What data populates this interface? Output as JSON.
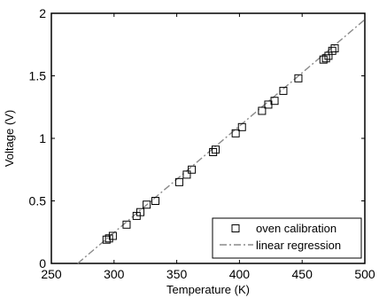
{
  "chart_data": {
    "type": "scatter",
    "xlabel": "Temperature (K)",
    "ylabel": "Voltage (V)",
    "xlim": [
      250,
      500
    ],
    "ylim": [
      0,
      2
    ],
    "xticks": [
      250,
      300,
      350,
      400,
      450,
      500
    ],
    "yticks": [
      0,
      0.5,
      1,
      1.5,
      2
    ],
    "xtick_labels": [
      "250",
      "300",
      "350",
      "400",
      "450",
      "500"
    ],
    "ytick_labels": [
      "0",
      "0.5",
      "1",
      "1.5",
      "2"
    ],
    "grid": false,
    "legend_position": "bottom-right",
    "series": [
      {
        "name": "oven calibration",
        "marker": "square",
        "color": "#000000",
        "x": [
          294,
          296,
          299,
          310,
          318,
          321,
          326,
          333,
          352,
          358,
          362,
          379,
          381,
          397,
          402,
          418,
          423,
          428,
          435,
          447,
          467,
          469,
          471,
          474,
          476
        ],
        "y": [
          0.19,
          0.2,
          0.22,
          0.31,
          0.38,
          0.41,
          0.47,
          0.5,
          0.65,
          0.71,
          0.75,
          0.89,
          0.91,
          1.04,
          1.09,
          1.22,
          1.27,
          1.3,
          1.38,
          1.48,
          1.63,
          1.64,
          1.66,
          1.7,
          1.72
        ]
      },
      {
        "name": "linear regression",
        "style": "dash-dot",
        "color": "#8a8a8a",
        "x": [
          271,
          500
        ],
        "y": [
          0,
          1.95
        ]
      }
    ]
  }
}
